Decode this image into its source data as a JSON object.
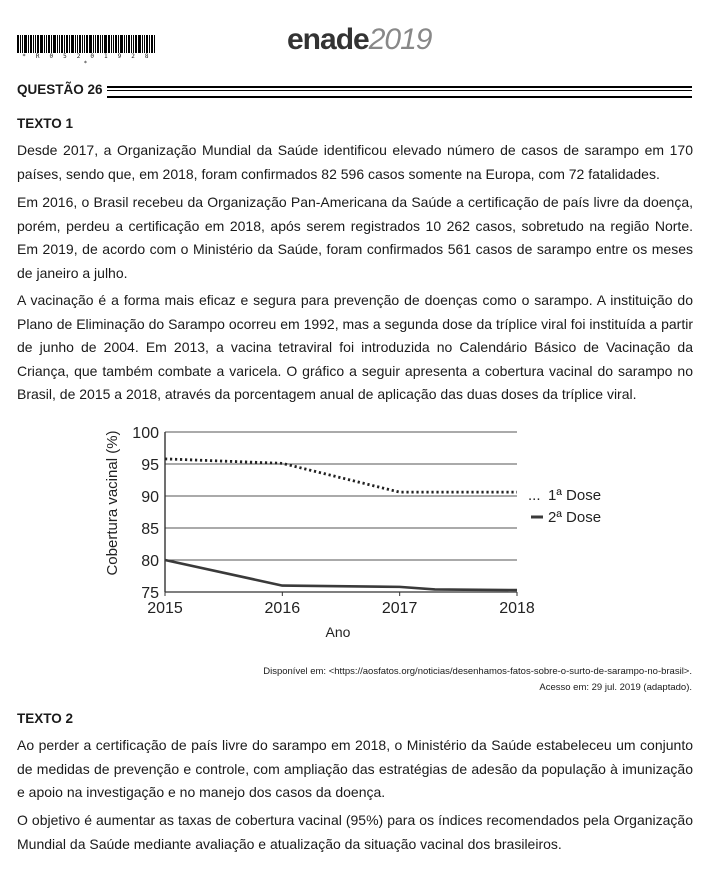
{
  "header": {
    "barcode_text": "* R 0 5 2 0 1 9 2 8 *",
    "brand_main": "enade",
    "brand_year": "2019"
  },
  "question": {
    "title": "QUESTÃO 26"
  },
  "texto1": {
    "title": "TEXTO 1",
    "paragraphs": [
      "Desde 2017, a Organização Mundial da Saúde identificou elevado número de casos de sarampo em 170 países, sendo que, em 2018, foram confirmados 82 596 casos somente na Europa, com 72 fatalidades.",
      "Em 2016, o Brasil recebeu da Organização Pan-Americana da Saúde a certificação de país livre da doença, porém, perdeu a certificação em 2018, após serem registrados 10 262 casos, sobretudo na região Norte. Em 2019, de acordo com o Ministério da Saúde, foram confirmados 561 casos de sarampo entre os meses de janeiro a julho.",
      "A vacinação é a forma mais eficaz e segura para prevenção de doenças como o sarampo. A instituição do Plano de Eliminação do Sarampo ocorreu em 1992, mas a segunda dose da tríplice viral foi instituída a partir de junho de 2004. Em 2013, a vacina tetraviral foi introduzida no Calendário Básico de Vacinação da Criança, que também combate a varicela. O gráfico a seguir apresenta a cobertura vacinal do sarampo no Brasil, de 2015 a 2018, através da porcentagem anual de aplicação das duas doses da tríplice viral."
    ],
    "source_line1": "Disponível em: <https://aosfatos.org/noticias/desenhamos-fatos-sobre-o-surto-de-sarampo-no-brasil>.",
    "source_line2": "Acesso em: 29 jul. 2019 (adaptado)."
  },
  "chart_data": {
    "type": "line",
    "x": [
      2015,
      2016,
      2017,
      2018
    ],
    "x_tick_labels": [
      "2015",
      "2016",
      "2017",
      "2018"
    ],
    "y_ticks": [
      75,
      80,
      85,
      90,
      95,
      100
    ],
    "y_tick_labels": [
      "75",
      "80",
      "85",
      "90",
      "95",
      "100"
    ],
    "ylim": [
      75,
      100
    ],
    "xlabel": "Ano",
    "ylabel": "Cobertura vacinal (%)",
    "grid": true,
    "legend_position": "right",
    "series": [
      {
        "name": "1ª Dose",
        "legend_symbol": "...",
        "style": "dotted",
        "color": "#222222",
        "points": [
          [
            2015,
            95.8
          ],
          [
            2016,
            95.1
          ],
          [
            2017,
            90.6
          ],
          [
            2018,
            90.6
          ]
        ]
      },
      {
        "name": "2ª Dose",
        "legend_symbol": "▬",
        "style": "solid",
        "color": "#3a3a3a",
        "points": [
          [
            2015,
            80.0
          ],
          [
            2016,
            76.0
          ],
          [
            2017,
            75.8
          ],
          [
            2017.3,
            75.4
          ],
          [
            2018,
            75.3
          ]
        ]
      }
    ]
  },
  "texto2": {
    "title": "TEXTO 2",
    "paragraphs": [
      "Ao perder a certificação de país livre do sarampo em 2018, o Ministério da Saúde estabeleceu um conjunto de medidas de prevenção e controle, com ampliação das estratégias de adesão da população à imunização e apoio na investigação e no manejo dos casos da doença.",
      "O objetivo é aumentar as taxas de cobertura vacinal (95%) para os índices recomendados pela Organização Mundial da Saúde mediante avaliação e atualização da situação vacinal dos brasileiros."
    ]
  }
}
